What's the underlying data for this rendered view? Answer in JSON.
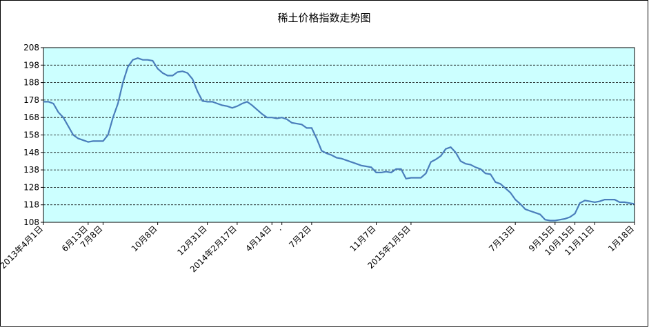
{
  "chart_data": {
    "type": "line",
    "title": "稀土价格指数走势图",
    "categories": [
      "2013年4月1日",
      null,
      null,
      null,
      null,
      null,
      null,
      null,
      null,
      "6月13日",
      null,
      null,
      "7月8日",
      null,
      null,
      null,
      null,
      null,
      null,
      null,
      null,
      null,
      null,
      "10月8日",
      null,
      null,
      null,
      null,
      null,
      null,
      null,
      null,
      null,
      "12月31日",
      null,
      null,
      null,
      null,
      null,
      "2014年2月17日",
      null,
      null,
      null,
      null,
      null,
      null,
      "4月14日",
      null,
      ".",
      null,
      null,
      null,
      null,
      null,
      "7月2日",
      null,
      null,
      null,
      null,
      null,
      null,
      null,
      null,
      null,
      null,
      null,
      null,
      "11月7日",
      null,
      null,
      null,
      null,
      null,
      null,
      "2015年1月5日",
      null,
      null,
      null,
      null,
      null,
      null,
      null,
      null,
      null,
      null,
      null,
      null,
      null,
      null,
      null,
      null,
      null,
      null,
      null,
      null,
      "7月13日",
      null,
      null,
      null,
      null,
      null,
      null,
      null,
      "9月15日",
      null,
      null,
      null,
      "10月15日",
      null,
      null,
      null,
      "11月11日",
      null,
      null,
      null,
      null,
      null,
      null,
      null,
      "1月18日"
    ],
    "series": [
      {
        "name": "稀土价格指数",
        "color": "#4a7ebb",
        "values": [
          177,
          177,
          176,
          171,
          168,
          163,
          158,
          156,
          155,
          154,
          154.5,
          154.5,
          154.5,
          158,
          168,
          176,
          188,
          197,
          201,
          202,
          201,
          201,
          200.5,
          196,
          193.5,
          192,
          192,
          194,
          194.5,
          193.5,
          190,
          183,
          177.5,
          177,
          177,
          176,
          175,
          174.5,
          173.5,
          174.5,
          176,
          177,
          175,
          172.5,
          170,
          168,
          168,
          167.5,
          168,
          167,
          165,
          164.5,
          164,
          162,
          162,
          156,
          149,
          147.5,
          146.5,
          145,
          144.5,
          143.5,
          142.5,
          141.5,
          140.5,
          140,
          139.5,
          136.5,
          136.5,
          137,
          136.5,
          138.5,
          138.5,
          133,
          133.5,
          133.5,
          133.5,
          136,
          142.5,
          144,
          146,
          150,
          151,
          148,
          143,
          141.5,
          141,
          139.5,
          138.5,
          136,
          135.5,
          131,
          130,
          127.5,
          125,
          121,
          118.5,
          115.5,
          114.5,
          113.5,
          112.5,
          109.5,
          109,
          109,
          109.5,
          110,
          111,
          113,
          119,
          120.5,
          120,
          119.5,
          120,
          121,
          121,
          121,
          119.5,
          119.5,
          119,
          118.5
        ]
      }
    ],
    "ylim": [
      108,
      208
    ],
    "yticks": [
      108,
      118,
      128,
      138,
      148,
      158,
      168,
      178,
      188,
      198,
      208
    ],
    "grid": true,
    "plot_background": "#ccffff"
  }
}
